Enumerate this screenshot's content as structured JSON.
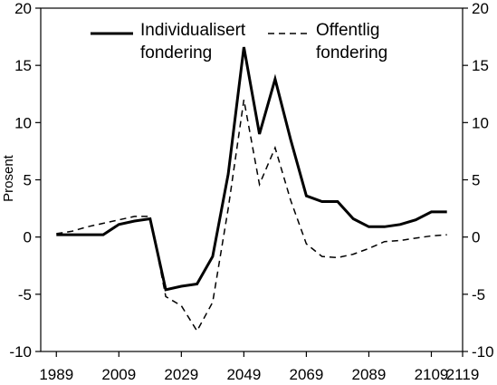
{
  "chart_data": {
    "type": "line",
    "ylabel": "Prosent",
    "xlabel": "",
    "xlim": [
      1984,
      2119
    ],
    "ylim": [
      -10,
      20
    ],
    "x_ticks": [
      "1989",
      "2009",
      "2029",
      "2049",
      "2069",
      "2089",
      "2109",
      "2119"
    ],
    "y_ticks": [
      "20",
      "15",
      "10",
      "5",
      "0",
      "-5",
      "-10"
    ],
    "grid": false,
    "legend_position": "top",
    "series": [
      {
        "name": "Individualisert fondering",
        "legend_lines": [
          "Individualisert",
          "fondering"
        ],
        "style": "solid",
        "x": [
          1984,
          1989,
          1994,
          1999,
          2004,
          2009,
          2014,
          2019,
          2024,
          2029,
          2034,
          2039,
          2044,
          2049,
          2054,
          2059,
          2064,
          2069,
          2074,
          2079,
          2084,
          2089,
          2094,
          2099,
          2104,
          2109,
          2114,
          2119
        ],
        "values": [
          0.2,
          0.2,
          0.2,
          0.2,
          0.2,
          1.1,
          1.4,
          1.6,
          -4.6,
          -4.3,
          -4.1,
          -1.7,
          5.5,
          16.6,
          9.0,
          13.8,
          8.5,
          3.6,
          3.1,
          3.1,
          1.6,
          0.9,
          0.9,
          1.1,
          1.5,
          2.2,
          2.2,
          2.2
        ]
      },
      {
        "name": "Offentlig fondering",
        "legend_lines": [
          "Offentlig",
          "fondering"
        ],
        "style": "dashed",
        "x": [
          1984,
          1989,
          1994,
          1999,
          2004,
          2009,
          2014,
          2019,
          2024,
          2029,
          2034,
          2039,
          2044,
          2049,
          2054,
          2059,
          2064,
          2069,
          2074,
          2079,
          2084,
          2089,
          2094,
          2099,
          2104,
          2109,
          2114,
          2119
        ],
        "values": [
          0.2,
          0.3,
          0.5,
          0.9,
          1.2,
          1.5,
          1.8,
          1.8,
          -5.2,
          -6.0,
          -8.2,
          -5.7,
          2.5,
          12.0,
          4.6,
          7.8,
          3.2,
          -0.6,
          -1.7,
          -1.8,
          -1.5,
          -1.0,
          -0.4,
          -0.3,
          -0.1,
          0.1,
          0.2,
          0.2
        ]
      }
    ]
  }
}
